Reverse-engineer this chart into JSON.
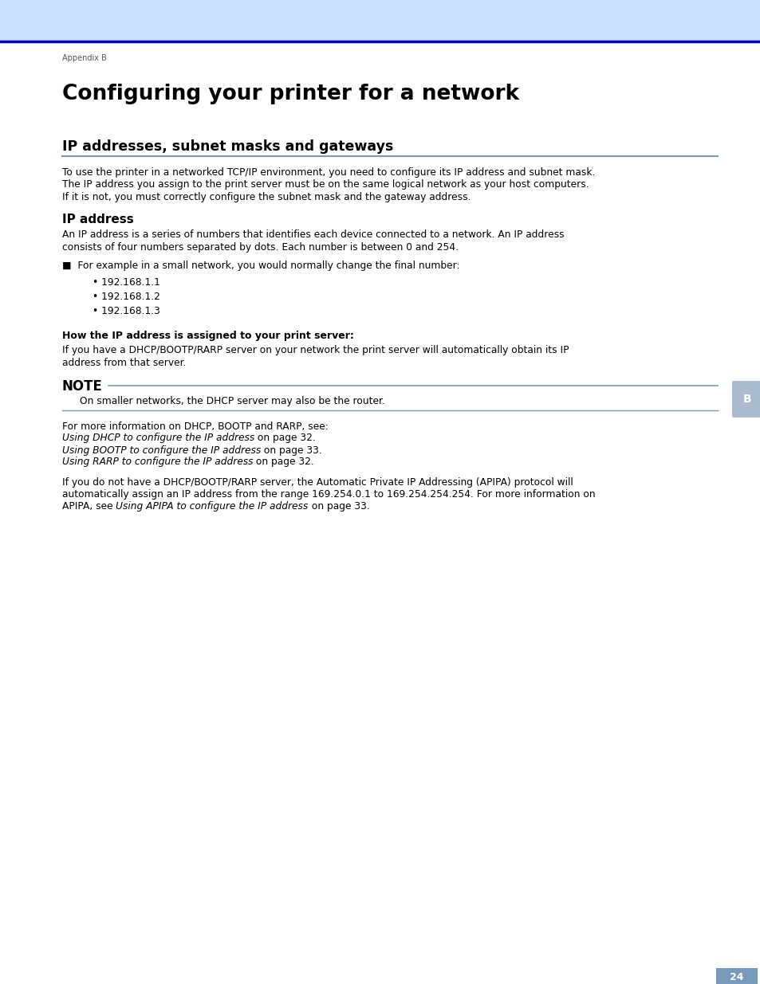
{
  "header_bg_color": "#cce0ff",
  "header_line_color": "#0000cc",
  "appendix_label": "Appendix B",
  "main_title": "Configuring your printer for a network",
  "section1_title": "IP addresses, subnet masks and gateways",
  "section_line_color": "#7799bb",
  "section1_body_lines": [
    "To use the printer in a networked TCP/IP environment, you need to configure its IP address and subnet mask.",
    "The IP address you assign to the print server must be on the same logical network as your host computers.",
    "If it is not, you must correctly configure the subnet mask and the gateway address."
  ],
  "section2_title": "IP address",
  "section2_body_lines": [
    "An IP address is a series of numbers that identifies each device connected to a network. An IP address",
    "consists of four numbers separated by dots. Each number is between 0 and 254."
  ],
  "bullet_intro": "For example in a small network, you would normally change the final number:",
  "bullet_items": [
    "192.168.1.1",
    "192.168.1.2",
    "192.168.1.3"
  ],
  "subsection_title": "How the IP address is assigned to your print server:",
  "subsection_body_lines": [
    "If you have a DHCP/BOOTP/RARP server on your network the print server will automatically obtain its IP",
    "address from that server."
  ],
  "note_title": "NOTE",
  "note_body": "On smaller networks, the DHCP server may also be the router.",
  "info_line0": "For more information on DHCP, BOOTP and RARP, see:",
  "info_italic": [
    "Using DHCP to configure the IP address",
    "Using BOOTP to configure the IP address",
    "Using RARP to configure the IP address"
  ],
  "info_suffix": [
    " on page 32.",
    " on page 33.",
    " on page 32."
  ],
  "final_line1": "If you do not have a DHCP/BOOTP/RARP server, the Automatic Private IP Addressing (APIPA) protocol will",
  "final_line2": "automatically assign an IP address from the range 169.254.0.1 to 169.254.254.254. For more information on",
  "final_line3_prefix": "APIPA, see ",
  "final_italic": "Using APIPA to configure the IP address",
  "final_suffix": " on page 33.",
  "page_number": "24",
  "page_box_color": "#7799bb",
  "sidebar_label": "B",
  "sidebar_bg": "#aabbd0",
  "body_text_color": "#000000",
  "bg_color": "#ffffff"
}
